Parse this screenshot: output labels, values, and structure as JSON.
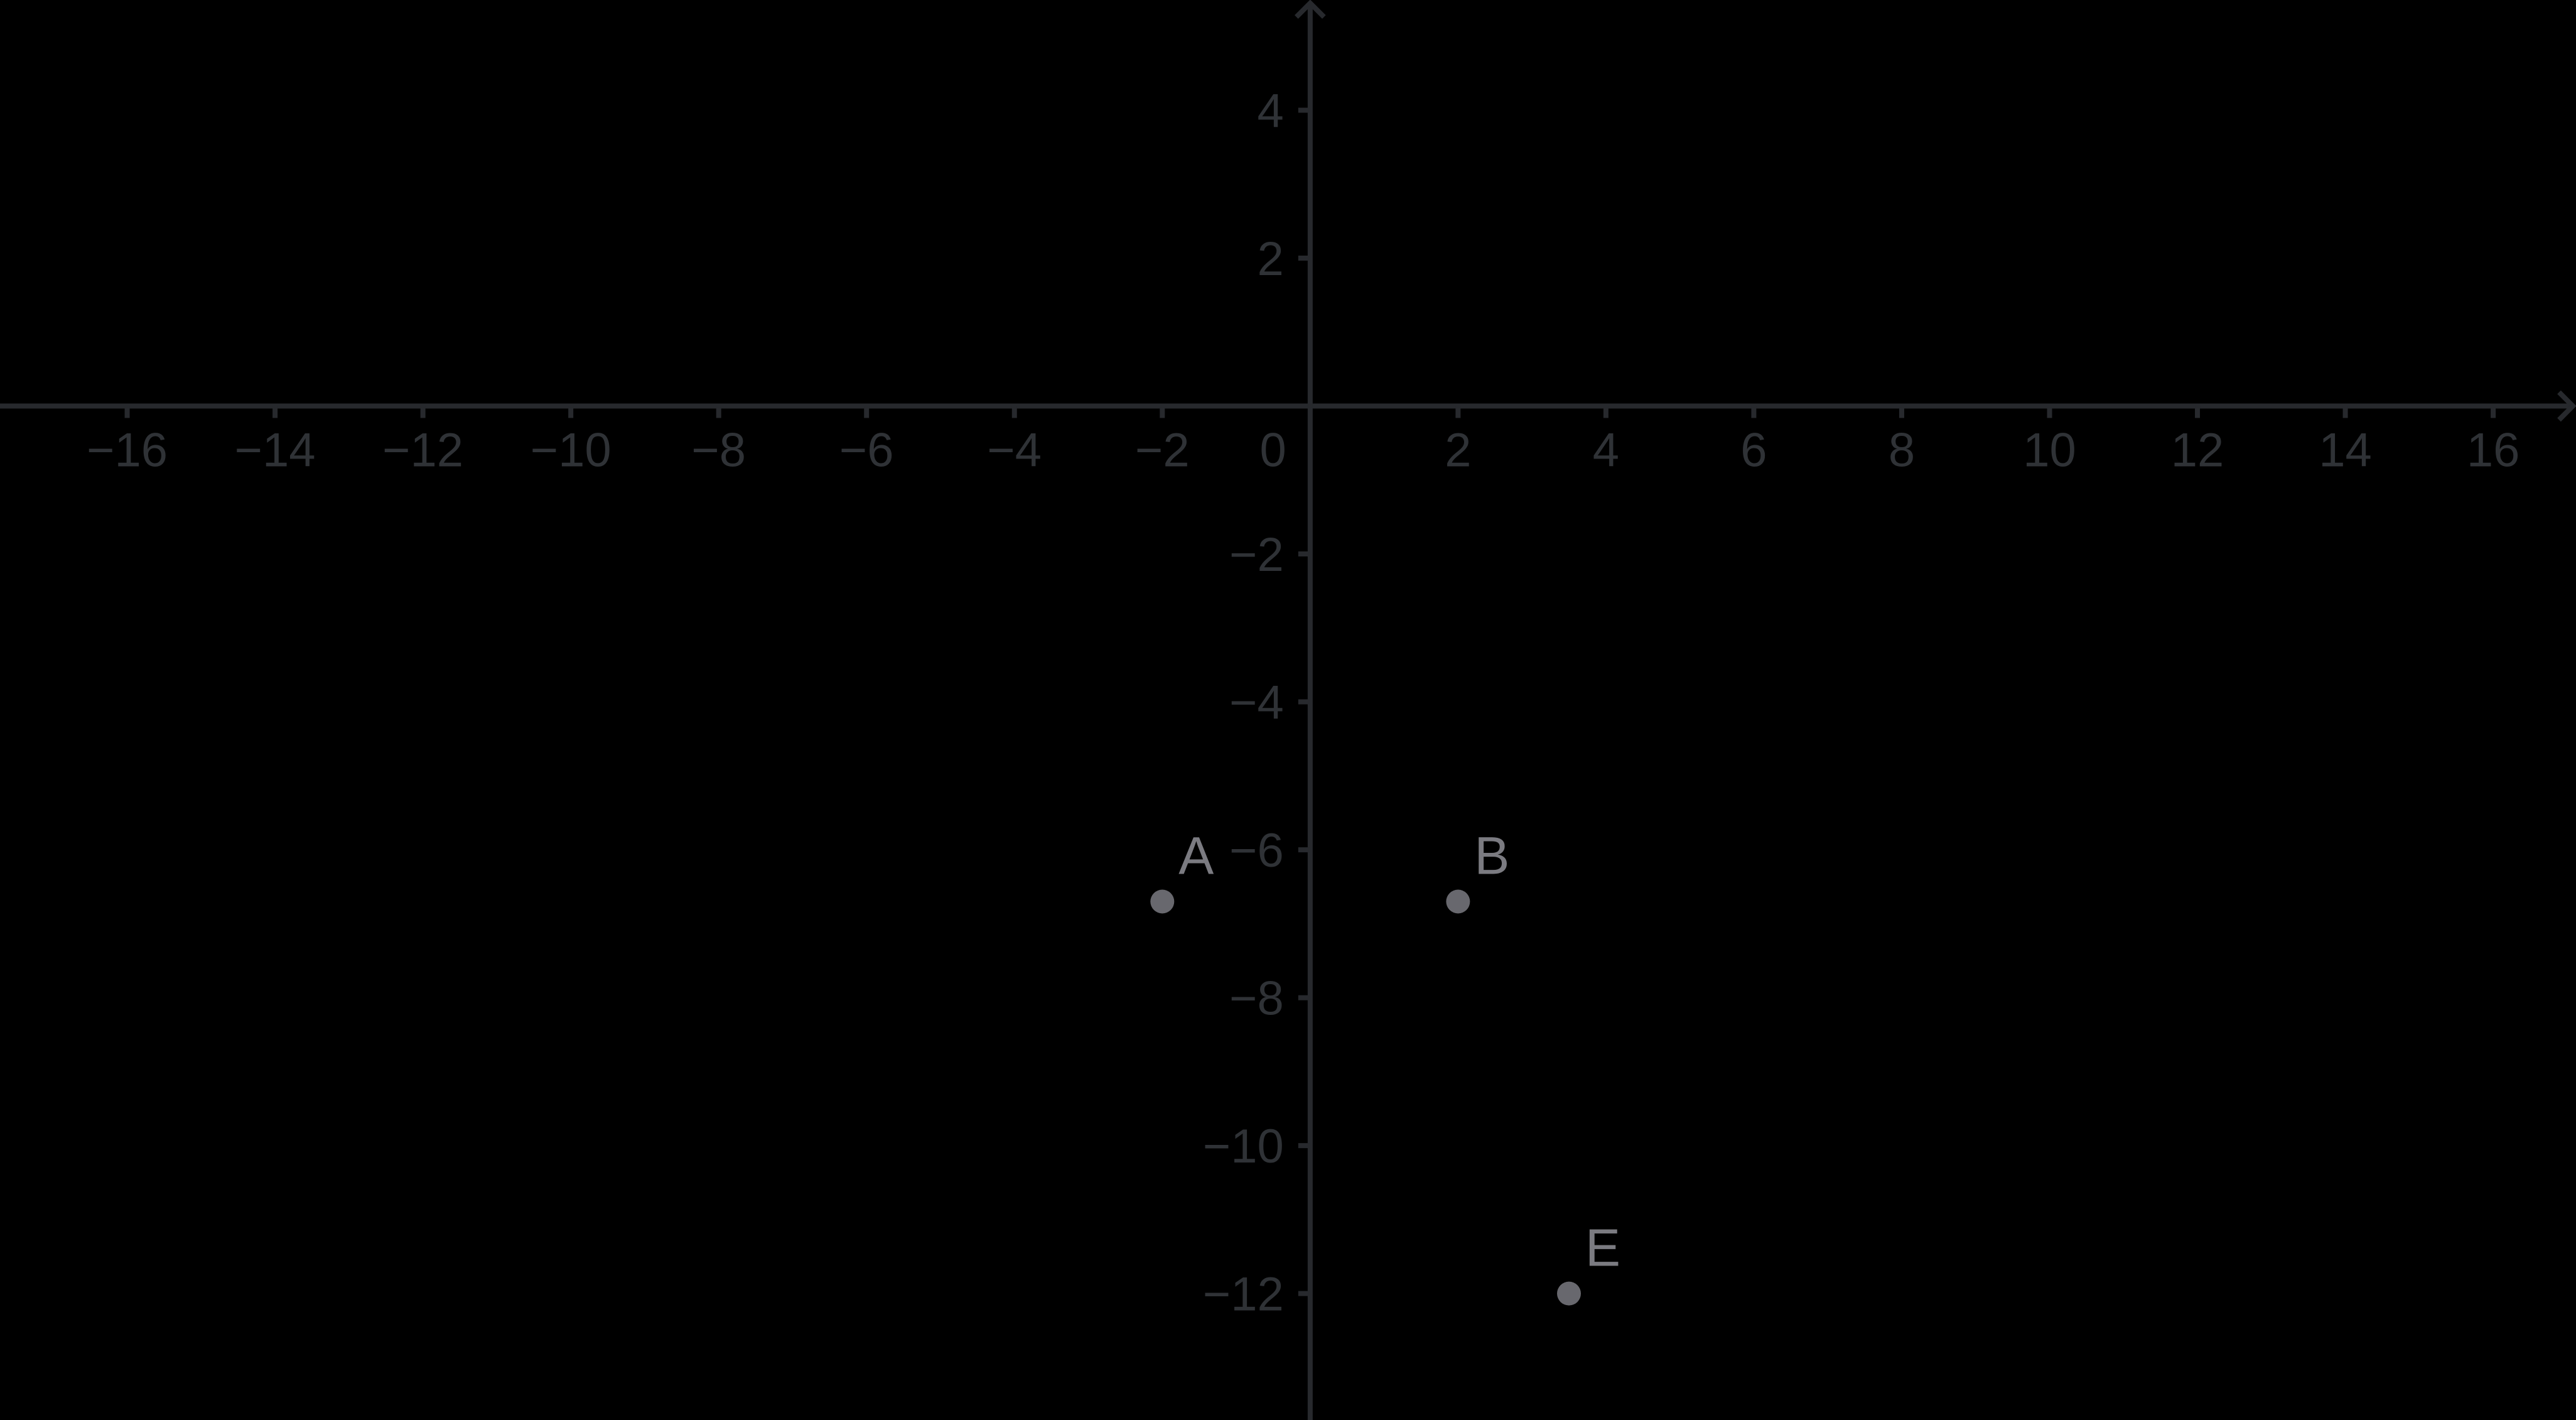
{
  "app": {
    "view_name": "graphics-view",
    "background_color": "#000000"
  },
  "chart_data": {
    "type": "scatter",
    "title": "",
    "xlabel": "",
    "ylabel": "",
    "grid": false,
    "legend": "none",
    "xlim": [
      -17.72,
      17.12
    ],
    "ylim": [
      -13.71,
      5.49
    ],
    "axis_color": "#27292d",
    "tick_label_color": "#2f3236",
    "point_color": "#68686e",
    "point_label_color": "#7b7b81",
    "x_ticks": [
      -16,
      -14,
      -12,
      -10,
      -8,
      -6,
      -4,
      -2,
      2,
      4,
      6,
      8,
      10,
      12,
      14,
      16
    ],
    "x_tick_labels": [
      "−16",
      "−14",
      "−12",
      "−10",
      "−8",
      "−6",
      "−4",
      "−2",
      "2",
      "4",
      "6",
      "8",
      "10",
      "12",
      "14",
      "16"
    ],
    "y_ticks": [
      4,
      2,
      -2,
      -4,
      -6,
      -8,
      -10,
      -12
    ],
    "y_tick_labels": [
      "4",
      "2",
      "−2",
      "−4",
      "−6",
      "−8",
      "−10",
      "−12"
    ],
    "origin_label": "0",
    "points": [
      {
        "label": "A",
        "x": -2,
        "y": -6.7
      },
      {
        "label": "B",
        "x": 2,
        "y": -6.7
      },
      {
        "label": "E",
        "x": 3.5,
        "y": -12
      }
    ]
  }
}
